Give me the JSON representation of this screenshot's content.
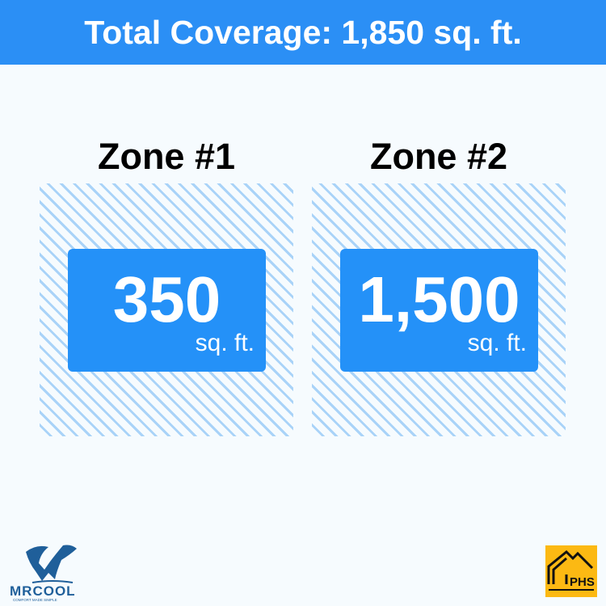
{
  "header": {
    "title": "Total Coverage: 1,850 sq. ft."
  },
  "zones": [
    {
      "title": "Zone #1",
      "value": "350",
      "unit": "sq. ft."
    },
    {
      "title": "Zone #2",
      "value": "1,500",
      "unit": "sq. ft."
    }
  ],
  "logos": {
    "left": {
      "name": "MRCOOL",
      "tagline": "COMFORT MADE SIMPLE"
    },
    "right": {
      "name": "PHS"
    }
  },
  "colors": {
    "accent": "#2b8ff5",
    "card": "#2491f8",
    "hatch": "#a9d3f8",
    "phs": "#fcb913",
    "mrcool": "#1f5f9a"
  }
}
